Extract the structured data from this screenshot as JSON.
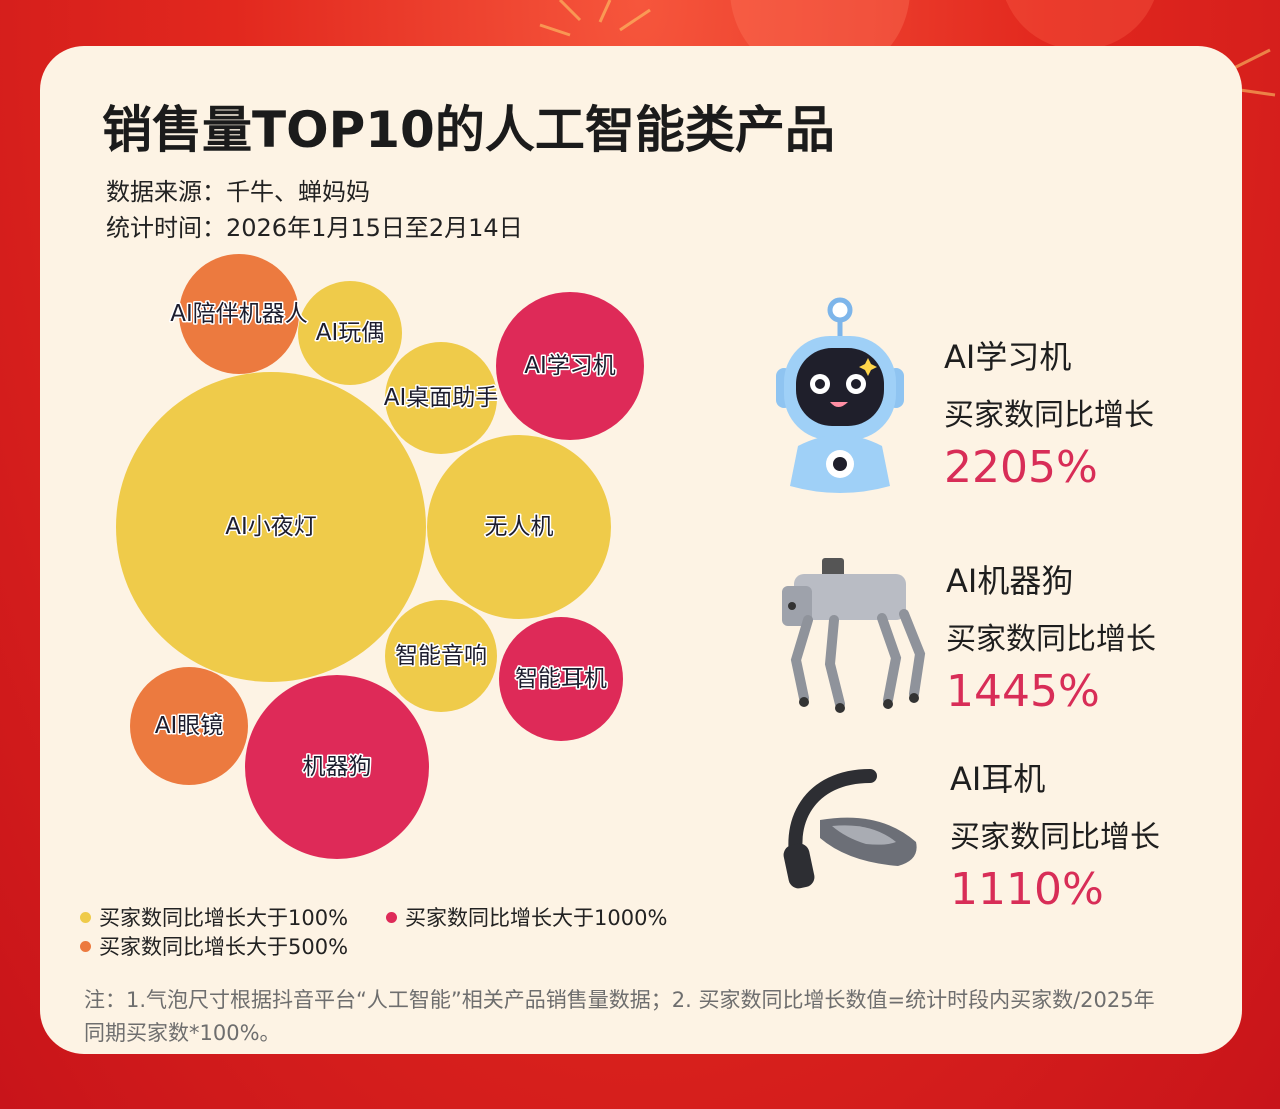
{
  "title": "销售量TOP10的人工智能类产品",
  "source": "数据来源：千牛、蝉妈妈",
  "period": "统计时间：2026年1月15日至2月14日",
  "colors": {
    "gt100": "#efcb4a",
    "gt500": "#ec7a3f",
    "gt1000": "#de2a58",
    "accent_text": "#d82d57",
    "card_bg": "#fdf3e4",
    "page_bg": "#e2281e"
  },
  "chart_data": {
    "type": "bubble",
    "title": "销售量TOP10的人工智能类产品",
    "categories": [
      "AI小夜灯",
      "无人机",
      "机器狗",
      "AI学习机",
      "智能耳机",
      "AI眼镜",
      "AI陪伴机器人",
      "AI桌面助手",
      "智能音响",
      "AI玩偶"
    ],
    "series": [
      {
        "category": "AI小夜灯",
        "group": "gt100"
      },
      {
        "category": "无人机",
        "group": "gt100"
      },
      {
        "category": "机器狗",
        "group": "gt1000"
      },
      {
        "category": "AI学习机",
        "group": "gt1000"
      },
      {
        "category": "智能耳机",
        "group": "gt1000"
      },
      {
        "category": "AI眼镜",
        "group": "gt500"
      },
      {
        "category": "AI陪伴机器人",
        "group": "gt500"
      },
      {
        "category": "AI桌面助手",
        "group": "gt100"
      },
      {
        "category": "智能音响",
        "group": "gt100"
      },
      {
        "category": "AI玩偶",
        "group": "gt100"
      }
    ],
    "legend": [
      {
        "key": "gt100",
        "label": "买家数同比增长大于100%"
      },
      {
        "key": "gt1000",
        "label": "买家数同比增长大于1000%"
      },
      {
        "key": "gt500",
        "label": "买家数同比增长大于500%"
      }
    ],
    "legend_position": "bottom-left"
  },
  "highlights": [
    {
      "name": "AI学习机",
      "metric": "买家数同比增长",
      "value": "2205%",
      "icon": "robot-learning-machine-icon"
    },
    {
      "name": "AI机器狗",
      "metric": "买家数同比增长",
      "value": "1445%",
      "icon": "robot-dog-icon"
    },
    {
      "name": "AI耳机",
      "metric": "买家数同比增长",
      "value": "1110%",
      "icon": "earphone-icon"
    }
  ],
  "note": "注：1.气泡尺寸根据抖音平台“人工智能”相关产品销售量数据；2. 买家数同比增长数值=统计时段内买家数/2025年同期买家数*100%。"
}
